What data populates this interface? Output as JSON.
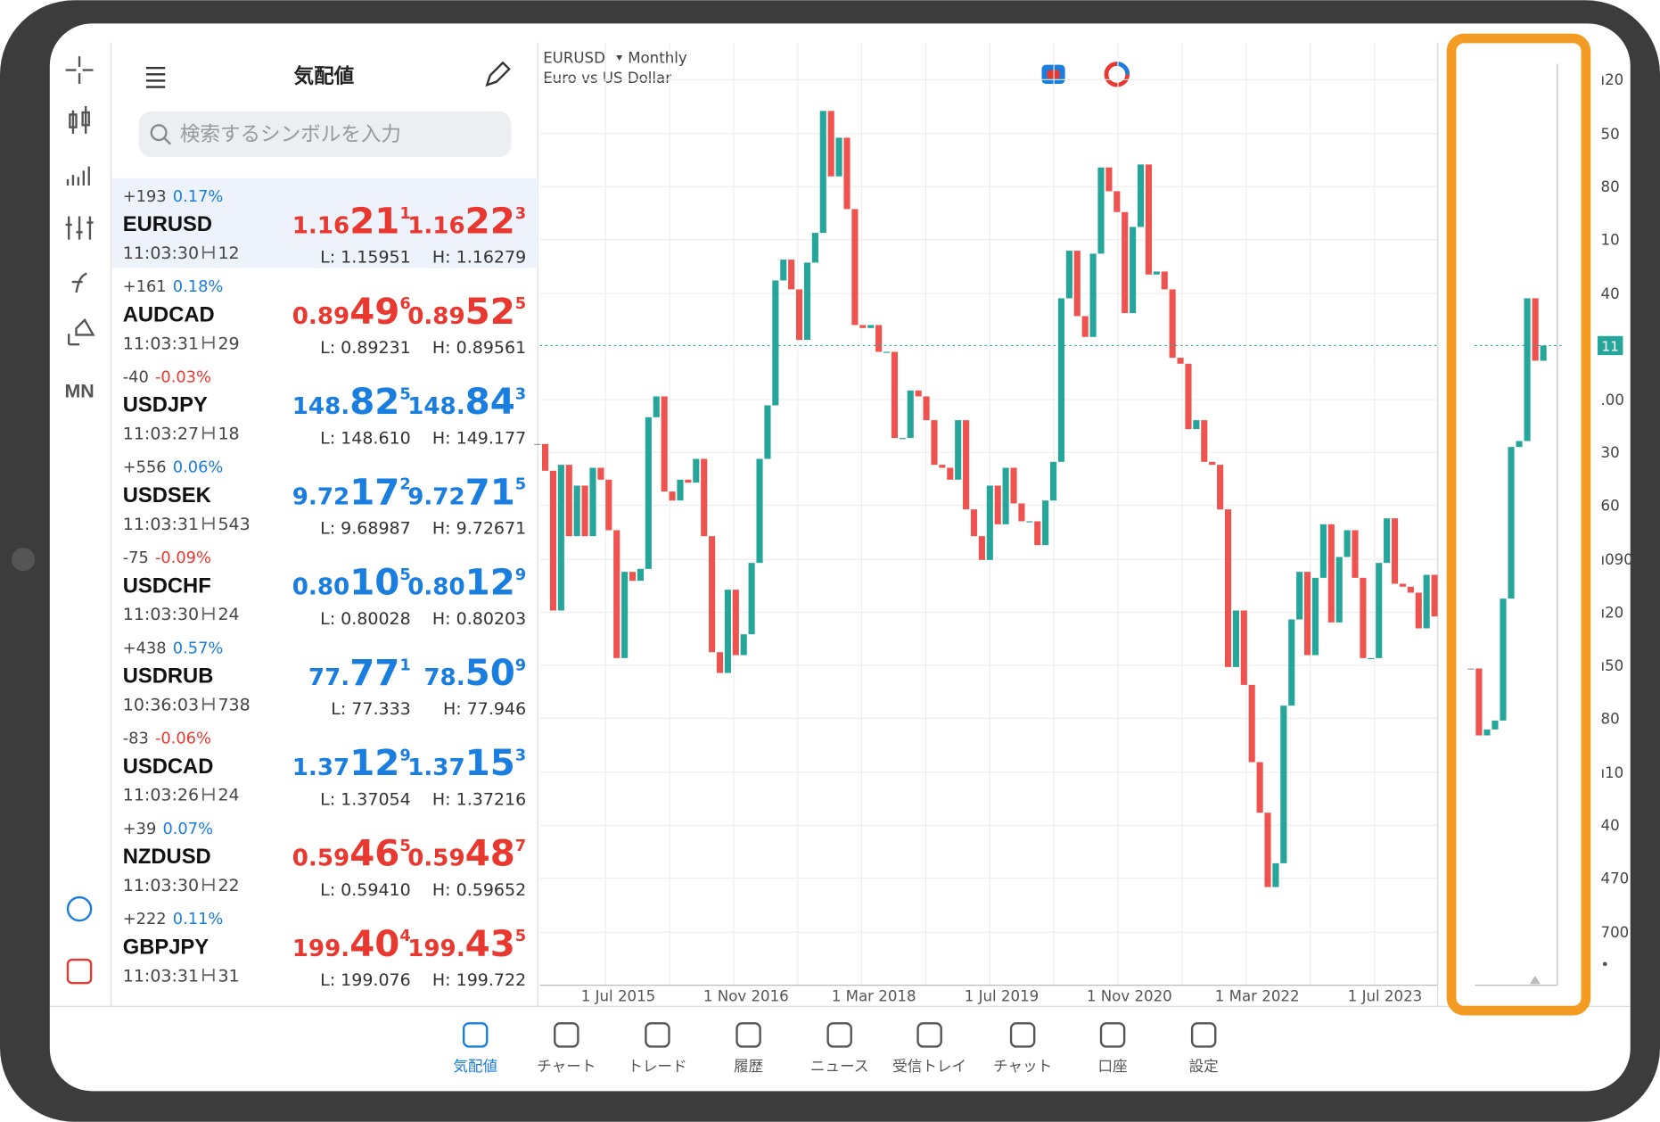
{
  "watchlist": {
    "title": "気配値",
    "search_placeholder": "検索するシンボルを入力",
    "rows": [
      {
        "change": "+193",
        "change_pct": "0.17%",
        "pct_color": "#1a7de0",
        "symbol": "EURUSD",
        "time": "11:03:30",
        "spread": 12,
        "bid": [
          "1.16",
          "21",
          "1"
        ],
        "ask": [
          "1.16",
          "22",
          "3"
        ],
        "low": "L: 1.15951",
        "high": "H: 1.16279",
        "price_color": "#e8382f"
      },
      {
        "change": "+161",
        "change_pct": "0.18%",
        "pct_color": "#1a7de0",
        "symbol": "AUDCAD",
        "time": "11:03:31",
        "spread": 29,
        "bid": [
          "0.89",
          "49",
          "6"
        ],
        "ask": [
          "0.89",
          "52",
          "5"
        ],
        "low": "L: 0.89231",
        "high": "H: 0.89561",
        "price_color": "#e8382f"
      },
      {
        "change": "-40",
        "change_pct": "-0.03%",
        "pct_color": "#e8382f",
        "symbol": "USDJPY",
        "time": "11:03:27",
        "spread": 18,
        "bid": [
          "148.",
          "82",
          "5"
        ],
        "ask": [
          "148.",
          "84",
          "3"
        ],
        "low": "L: 148.610",
        "high": "H: 149.177",
        "price_color": "#1a7de0"
      },
      {
        "change": "+556",
        "change_pct": "0.06%",
        "pct_color": "#1a7de0",
        "symbol": "USDSEK",
        "time": "11:03:31",
        "spread": 543,
        "bid": [
          "9.72",
          "17",
          "2"
        ],
        "ask": [
          "9.72",
          "71",
          "5"
        ],
        "low": "L: 9.68987",
        "high": "H: 9.72671",
        "price_color": "#1a7de0"
      },
      {
        "change": "-75",
        "change_pct": "-0.09%",
        "pct_color": "#e8382f",
        "symbol": "USDCHF",
        "time": "11:03:30",
        "spread": 24,
        "bid": [
          "0.80",
          "10",
          "5"
        ],
        "ask": [
          "0.80",
          "12",
          "9"
        ],
        "low": "L: 0.80028",
        "high": "H: 0.80203",
        "price_color": "#1a7de0"
      },
      {
        "change": "+438",
        "change_pct": "0.57%",
        "pct_color": "#1a7de0",
        "symbol": "USDRUB",
        "time": "10:36:03",
        "spread": 738,
        "bid": [
          "77.",
          "77",
          "1"
        ],
        "ask": [
          "78.",
          "50",
          "9"
        ],
        "low": "L: 77.333",
        "high": "H: 77.946",
        "price_color": "#1a7de0"
      },
      {
        "change": "-83",
        "change_pct": "-0.06%",
        "pct_color": "#e8382f",
        "symbol": "USDCAD",
        "time": "11:03:26",
        "spread": 24,
        "bid": [
          "1.37",
          "12",
          "9"
        ],
        "ask": [
          "1.37",
          "15",
          "3"
        ],
        "low": "L: 1.37054",
        "high": "H: 1.37216",
        "price_color": "#1a7de0"
      },
      {
        "change": "+39",
        "change_pct": "0.07%",
        "pct_color": "#1a7de0",
        "symbol": "NZDUSD",
        "time": "11:03:30",
        "spread": 22,
        "bid": [
          "0.59",
          "46",
          "5"
        ],
        "ask": [
          "0.59",
          "48",
          "7"
        ],
        "low": "L: 0.59410",
        "high": "H: 0.59652",
        "price_color": "#e8382f"
      },
      {
        "change": "+222",
        "change_pct": "0.11%",
        "pct_color": "#1a7de0",
        "symbol": "GBPJPY",
        "time": "11:03:31",
        "spread": 31,
        "bid": [
          "199.",
          "40",
          "4"
        ],
        "ask": [
          "199.",
          "43",
          "5"
        ],
        "low": "L: 199.076",
        "high": "H: 199.722",
        "price_color": "#e8382f"
      }
    ]
  },
  "toolbar": {
    "period": "MN"
  },
  "chart_data": {
    "type": "candlestick",
    "symbol": "EURUSD",
    "period": "Monthly",
    "description": "Euro vs US Dollar",
    "x_labels": [
      "1 Jul 2015",
      "1 Nov 2016",
      "1 Mar 2018",
      "1 Jul 2019",
      "1 Nov 2020",
      "1 Mar 2022",
      "1 Jul 2023"
    ],
    "close": [
      1.129,
      1.12,
      1.073,
      1.122,
      1.098,
      1.115,
      1.098,
      1.121,
      1.117,
      1.1,
      1.057,
      1.086,
      1.083,
      1.087,
      1.138,
      1.145,
      1.113,
      1.11,
      1.117,
      1.116,
      1.124,
      1.098,
      1.059,
      1.052,
      1.08,
      1.058,
      1.065,
      1.089,
      1.124,
      1.142,
      1.184,
      1.191,
      1.181,
      1.164,
      1.19,
      1.2,
      1.241,
      1.219,
      1.232,
      1.208,
      1.169,
      1.168,
      1.169,
      1.16,
      1.16,
      1.131,
      1.131,
      1.147,
      1.145,
      1.137,
      1.122,
      1.121,
      1.117,
      1.137,
      1.107,
      1.098,
      1.09,
      1.115,
      1.102,
      1.121,
      1.109,
      1.103,
      1.103,
      1.095,
      1.11,
      1.123,
      1.178,
      1.194,
      1.172,
      1.165,
      1.193,
      1.222,
      1.214,
      1.207,
      1.173,
      1.202,
      1.223,
      1.186,
      1.187,
      1.181,
      1.158,
      1.156,
      1.134,
      1.137,
      1.123,
      1.122,
      1.107,
      1.054,
      1.073,
      1.048,
      1.022,
      1.005,
      0.98,
      0.988,
      1.041,
      1.07,
      1.086,
      1.058,
      1.084,
      1.102,
      1.069,
      1.091,
      1.1,
      1.084,
      1.057,
      1.057,
      1.089,
      1.104,
      1.082,
      1.081,
      1.079,
      1.067,
      1.085,
      1.071
    ],
    "recent_close": [
      1.0535,
      1.031,
      1.033,
      1.036,
      1.077,
      1.128,
      1.13,
      1.178,
      1.157,
      1.1621
    ],
    "ylim": [
      0.947,
      1.264
    ],
    "last_price": {
      "value": 1.1621,
      "label": "11"
    },
    "y_labels_upper": [
      "ı20",
      "50",
      "80",
      "10",
      "40"
    ],
    "y_labels_lower": [
      ".00",
      "30",
      "60",
      "ı090",
      "ı20",
      "ı50",
      "80",
      "ı10",
      "40",
      "470",
      "700"
    ],
    "up_color": "#26a69a",
    "down_color": "#ef5350",
    "grid": true
  },
  "tabs": [
    "気配値",
    "チャート",
    "トレード",
    "履歴",
    "ニュース",
    "受信トレイ",
    "チャット",
    "口座",
    "設定"
  ],
  "active_tab": 0
}
